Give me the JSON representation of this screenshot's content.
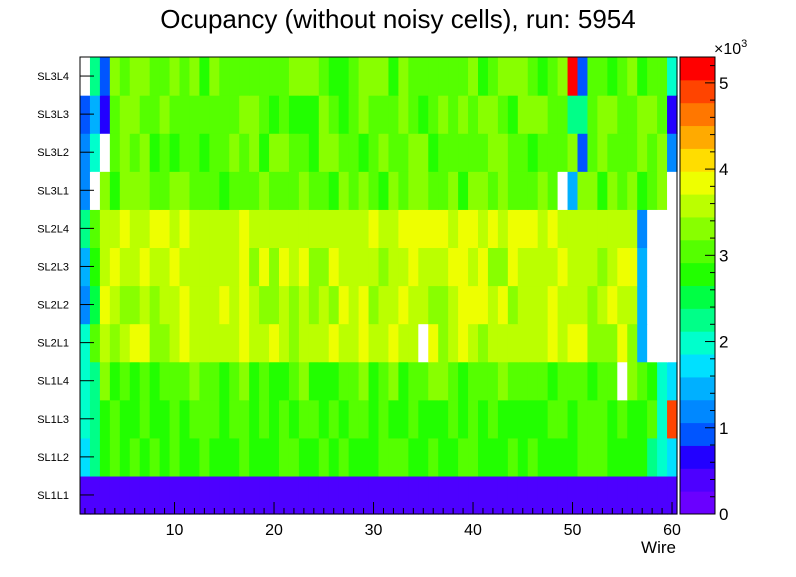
{
  "chart_data": {
    "type": "heatmap",
    "title": "Ocupancy (without noisy cells), run: 5954",
    "xlabel": "Wire",
    "ylabel": "",
    "xlim": [
      0.5,
      60.5
    ],
    "x_ticks": [
      10,
      20,
      30,
      40,
      50,
      60
    ],
    "x_tick_labels": [
      "10",
      "20",
      "30",
      "40",
      "50",
      "60"
    ],
    "categories": [
      "SL1L1",
      "SL1L2",
      "SL1L3",
      "SL1L4",
      "SL2L1",
      "SL2L2",
      "SL2L3",
      "SL2L4",
      "SL3L1",
      "SL3L2",
      "SL3L3",
      "SL3L4"
    ],
    "zlim": [
      0,
      5300
    ],
    "colorbar": {
      "multiplier_label": "×10",
      "multiplier_exponent": "3",
      "ticks": [
        0,
        1000,
        2000,
        3000,
        4000,
        5000
      ],
      "tick_labels": [
        "0",
        "1",
        "2",
        "3",
        "4",
        "5"
      ],
      "palette": [
        "#6a00ff",
        "#4d00ff",
        "#2200ff",
        "#0055ff",
        "#0088ff",
        "#00b0ff",
        "#00e0ff",
        "#00ffcc",
        "#00ff88",
        "#00ff44",
        "#22ff00",
        "#55ff00",
        "#88ff00",
        "#bbff00",
        "#eeff00",
        "#ffdd00",
        "#ffaa00",
        "#ff7700",
        "#ff4400",
        "#ff0000"
      ]
    },
    "row_profiles": {
      "SL1L1": {
        "base": 350,
        "ends": {
          "1": 350,
          "60": 350
        }
      },
      "SL1L2": {
        "base": 2900,
        "ends": {
          "1": 1700,
          "2": 2200,
          "58": 2300,
          "59": 2000,
          "60": 1700
        }
      },
      "SL1L3": {
        "base": 2900,
        "ends": {
          "1": 2100,
          "2": 2300,
          "59": 2000,
          "60": 4800
        }
      },
      "SL1L4": {
        "base": 3000,
        "ends": {
          "1": 1900,
          "2": 2200,
          "55": -1,
          "59": 2000,
          "60": 1600
        }
      },
      "SL2L1": {
        "base": 3600,
        "ends": {
          "1": 2100,
          "2": 3100,
          "35": -1,
          "57": 1500,
          "58": -1,
          "59": -1,
          "60": -1
        }
      },
      "SL2L2": {
        "base": 3600,
        "ends": {
          "1": 1100,
          "2": 2500,
          "57": 1500,
          "58": -1,
          "59": -1,
          "60": -1
        }
      },
      "SL2L3": {
        "base": 3600,
        "ends": {
          "1": 1500,
          "2": 2900,
          "57": 1400,
          "58": -1,
          "59": -1,
          "60": -1
        }
      },
      "SL2L4": {
        "base": 3700,
        "ends": {
          "1": 2200,
          "2": 3000,
          "57": 1300,
          "58": -1,
          "59": -1,
          "60": -1
        }
      },
      "SL3L1": {
        "base": 3100,
        "ends": {
          "1": 1100,
          "2": -1,
          "49": -1,
          "50": 1500,
          "60": -1
        }
      },
      "SL3L2": {
        "base": 3100,
        "ends": {
          "1": 1200,
          "2": 1900,
          "3": -1,
          "51": 1000,
          "60": 1300
        }
      },
      "SL3L3": {
        "base": 3100,
        "ends": {
          "1": 1000,
          "2": 1500,
          "3": 700,
          "50": 2200,
          "51": 2200,
          "60": 600
        }
      },
      "SL3L4": {
        "base": 3100,
        "ends": {
          "1": -1,
          "2": 2300,
          "3": 800,
          "50": 5200,
          "51": 800,
          "60": 2000
        }
      }
    }
  }
}
